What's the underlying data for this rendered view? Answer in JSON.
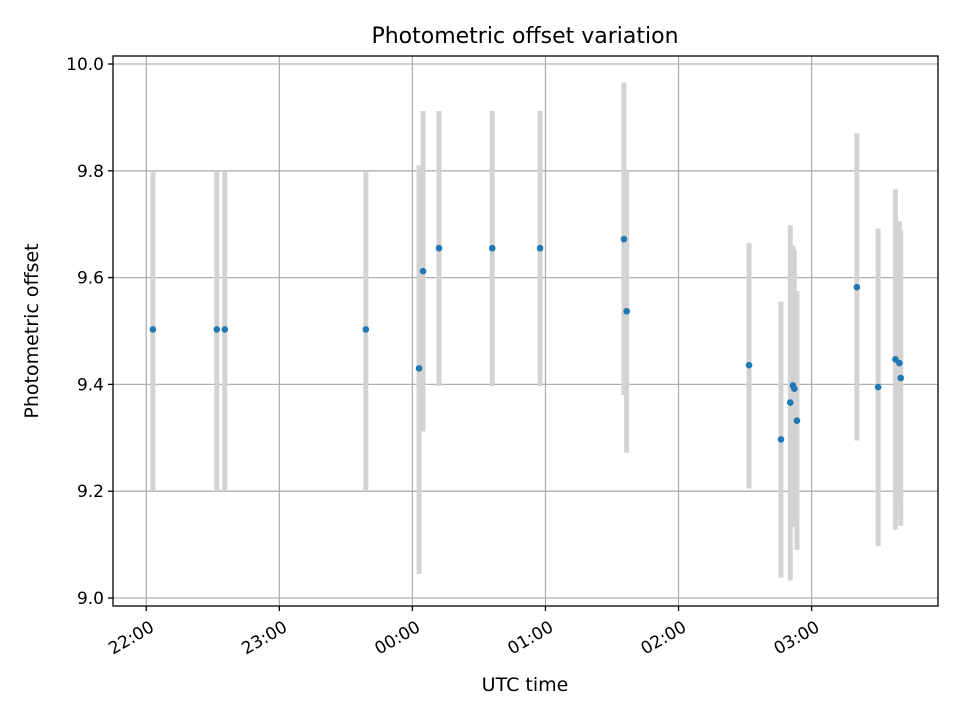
{
  "chart_data": {
    "type": "scatter",
    "title": "Photometric offset variation",
    "xlabel": "UTC time",
    "ylabel": "Photometric offset",
    "grid": true,
    "xlim_hours": [
      -2.25,
      3.95
    ],
    "ylim": [
      8.985,
      10.015
    ],
    "xticks": [
      {
        "label": "22:00",
        "hour": -2
      },
      {
        "label": "23:00",
        "hour": -1
      },
      {
        "label": "00:00",
        "hour": 0
      },
      {
        "label": "01:00",
        "hour": 1
      },
      {
        "label": "02:00",
        "hour": 2
      },
      {
        "label": "03:00",
        "hour": 3
      }
    ],
    "yticks": [
      {
        "label": "9.0",
        "value": 9.0
      },
      {
        "label": "9.2",
        "value": 9.2
      },
      {
        "label": "9.4",
        "value": 9.4
      },
      {
        "label": "9.6",
        "value": 9.6
      },
      {
        "label": "9.8",
        "value": 9.8
      },
      {
        "label": "10.0",
        "value": 10.0
      }
    ],
    "marker_color": "#1f77b4",
    "errorbar_color": "#d3d3d3",
    "points": [
      {
        "time": "22:03",
        "hour": -1.95,
        "value": 9.503,
        "low": 9.2,
        "high": 9.8
      },
      {
        "time": "22:32",
        "hour": -1.47,
        "value": 9.503,
        "low": 9.2,
        "high": 9.8
      },
      {
        "time": "22:36",
        "hour": -1.41,
        "value": 9.503,
        "low": 9.2,
        "high": 9.8
      },
      {
        "time": "23:39",
        "hour": -0.35,
        "value": 9.503,
        "low": 9.2,
        "high": 9.8
      },
      {
        "time": "00:03",
        "hour": 0.05,
        "value": 9.43,
        "low": 9.045,
        "high": 9.81
      },
      {
        "time": "00:04",
        "hour": 0.08,
        "value": 9.612,
        "low": 9.312,
        "high": 9.912
      },
      {
        "time": "00:12",
        "hour": 0.2,
        "value": 9.655,
        "low": 9.397,
        "high": 9.912
      },
      {
        "time": "00:36",
        "hour": 0.6,
        "value": 9.655,
        "low": 9.397,
        "high": 9.912
      },
      {
        "time": "00:57",
        "hour": 0.96,
        "value": 9.655,
        "low": 9.397,
        "high": 9.912
      },
      {
        "time": "01:35",
        "hour": 1.59,
        "value": 9.672,
        "low": 9.38,
        "high": 9.965
      },
      {
        "time": "01:37",
        "hour": 1.61,
        "value": 9.537,
        "low": 9.272,
        "high": 9.8
      },
      {
        "time": "02:32",
        "hour": 2.53,
        "value": 9.436,
        "low": 9.205,
        "high": 9.665
      },
      {
        "time": "02:46",
        "hour": 2.77,
        "value": 9.297,
        "low": 9.038,
        "high": 9.555
      },
      {
        "time": "02:50",
        "hour": 2.84,
        "value": 9.366,
        "low": 9.033,
        "high": 9.698
      },
      {
        "time": "02:51",
        "hour": 2.86,
        "value": 9.398,
        "low": 9.133,
        "high": 9.66
      },
      {
        "time": "02:52",
        "hour": 2.87,
        "value": 9.392,
        "low": 9.133,
        "high": 9.652
      },
      {
        "time": "02:53",
        "hour": 2.89,
        "value": 9.332,
        "low": 9.09,
        "high": 9.575
      },
      {
        "time": "03:20",
        "hour": 3.34,
        "value": 9.582,
        "low": 9.295,
        "high": 9.87
      },
      {
        "time": "03:30",
        "hour": 3.5,
        "value": 9.395,
        "low": 9.097,
        "high": 9.692
      },
      {
        "time": "03:38",
        "hour": 3.63,
        "value": 9.447,
        "low": 9.128,
        "high": 9.765
      },
      {
        "time": "03:39",
        "hour": 3.66,
        "value": 9.44,
        "low": 9.175,
        "high": 9.705
      },
      {
        "time": "03:40",
        "hour": 3.67,
        "value": 9.412,
        "low": 9.135,
        "high": 9.688
      }
    ]
  }
}
